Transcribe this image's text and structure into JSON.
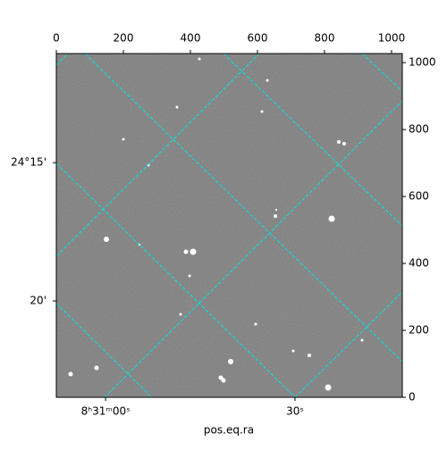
{
  "chart_data": {
    "type": "image",
    "xlabel": "pos.eq.ra",
    "xlim": [
      0,
      1032
    ],
    "xticks": [
      0,
      200,
      400,
      600,
      800,
      1000
    ],
    "ylim": [
      0,
      1027
    ],
    "yticks": [
      0,
      200,
      400,
      600,
      800,
      1000
    ],
    "ra_ticks": [
      {
        "value": 147,
        "label": "8ʰ31ᵐ00ˢ"
      },
      {
        "value": 712,
        "label": "30ˢ"
      }
    ],
    "dec_ticks": [
      {
        "value": 701,
        "label": "24°15'"
      },
      {
        "value": 288,
        "label": "20'"
      }
    ],
    "grid_color": "#00e5e5"
  }
}
